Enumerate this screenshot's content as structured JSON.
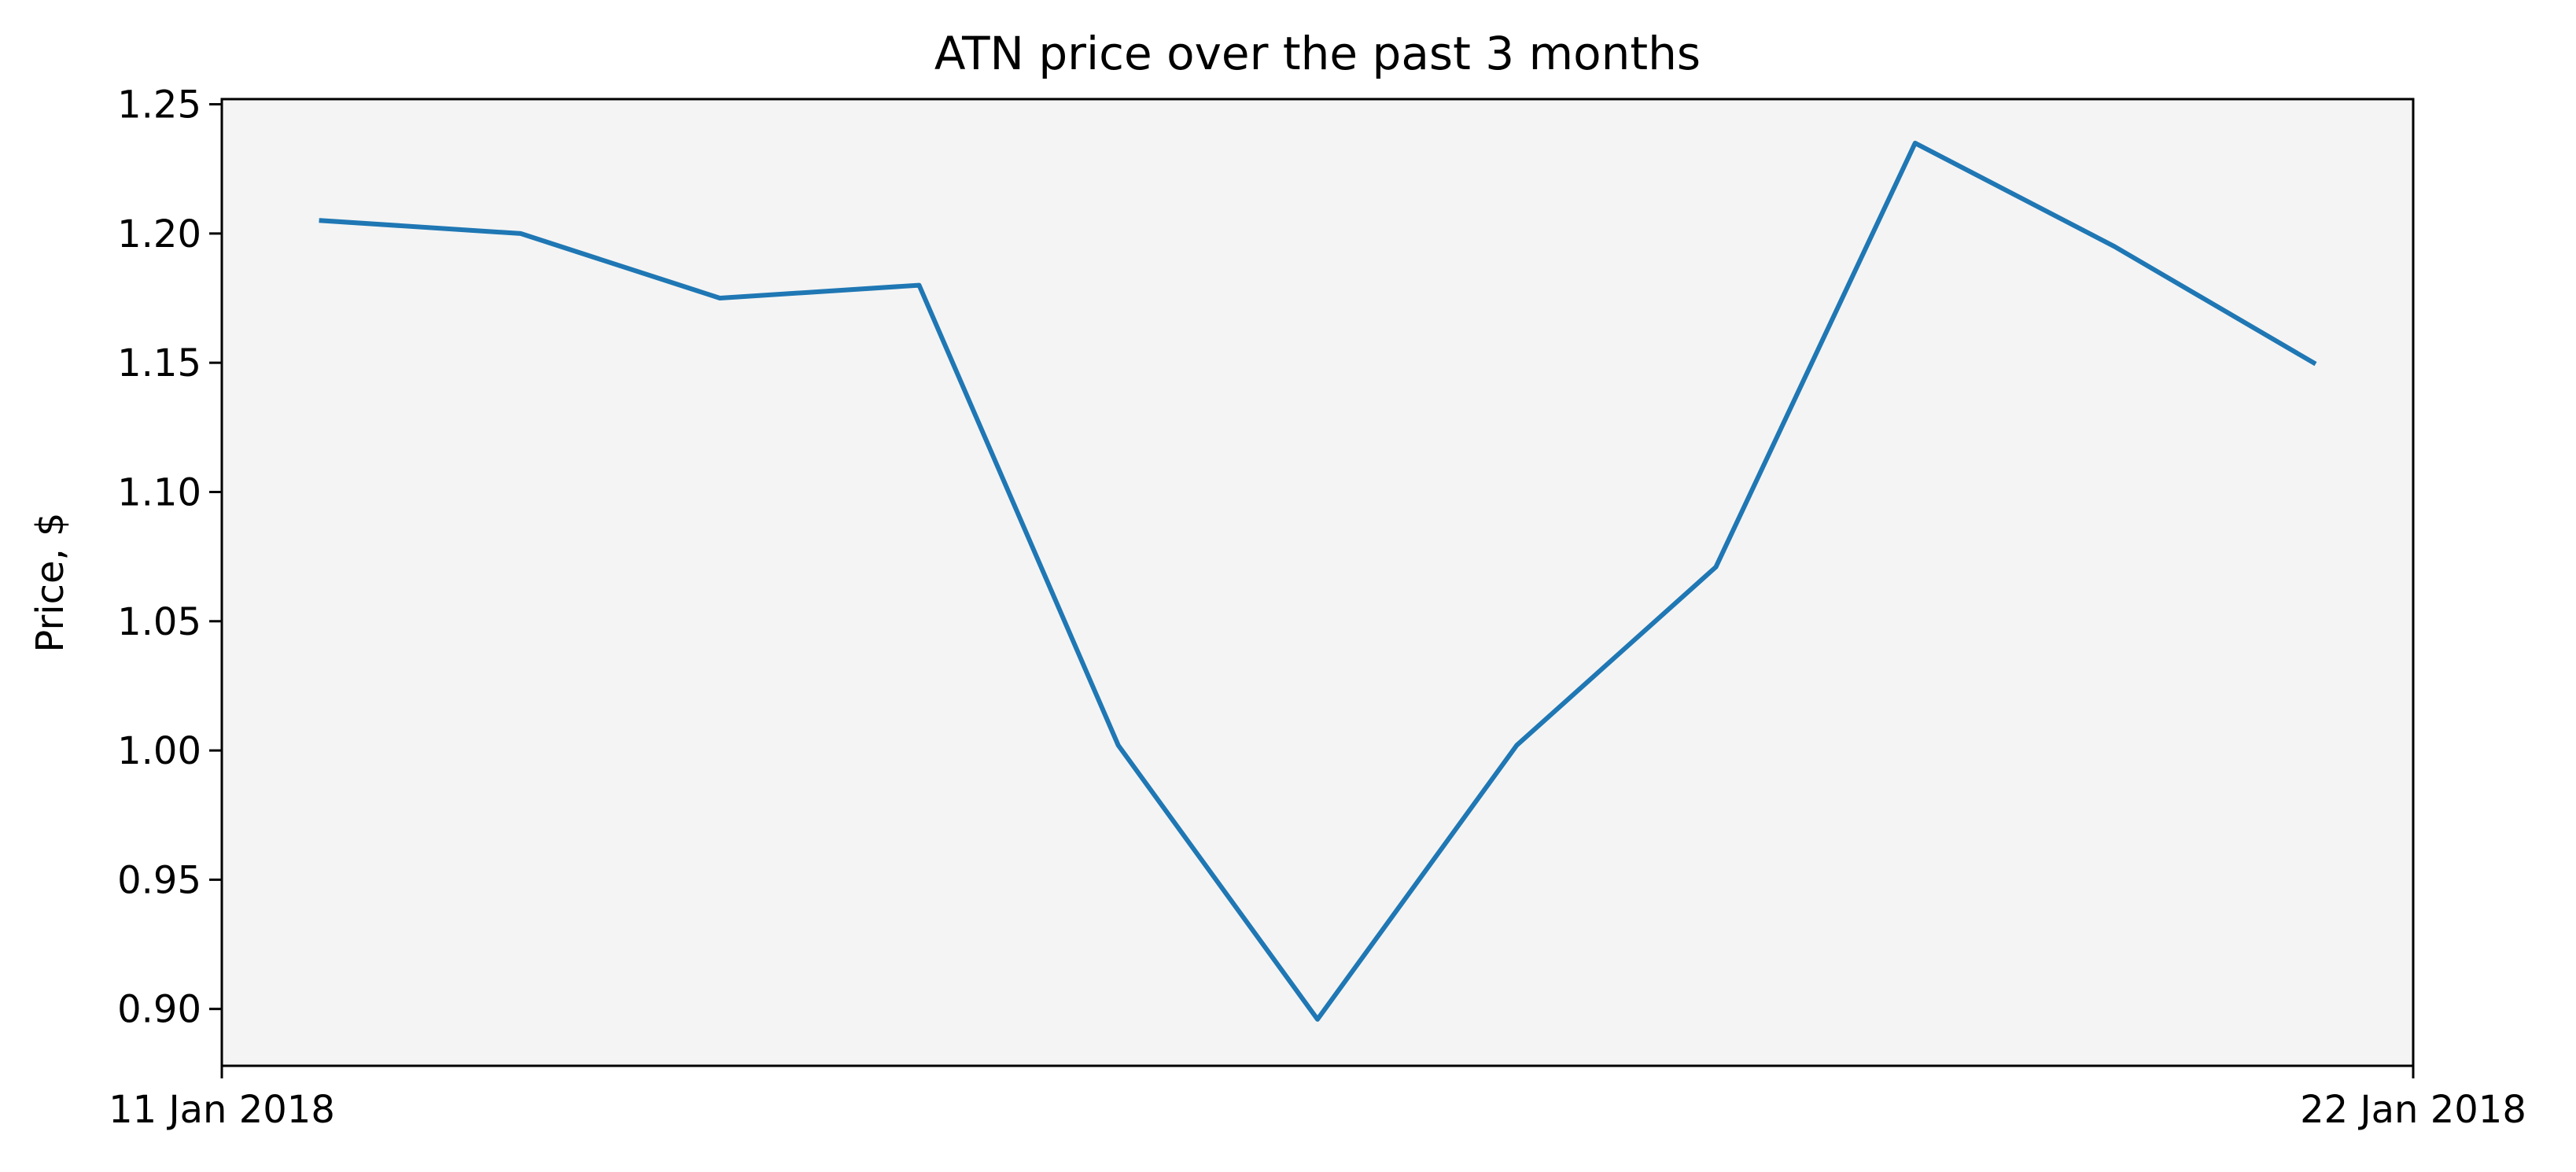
{
  "chart_data": {
    "type": "line",
    "title": "ATN price over the past 3 months",
    "xlabel": "",
    "ylabel": "Price, $",
    "x_tick_labels": [
      "11 Jan 2018",
      "22 Jan 2018"
    ],
    "y_ticks": [
      0.9,
      0.95,
      1.0,
      1.05,
      1.1,
      1.15,
      1.2,
      1.25
    ],
    "y_tick_labels": [
      "0.90",
      "0.95",
      "1.00",
      "1.05",
      "1.10",
      "1.15",
      "1.20",
      "1.25"
    ],
    "xlim": [
      "2018-01-11",
      "2018-01-22"
    ],
    "ylim": [
      0.878,
      1.252
    ],
    "grid": false,
    "background_color": "#f4f4f4",
    "line_color": "#1f77b4",
    "series": [
      {
        "x": [
          "2018-01-11T12:00",
          "2018-01-12T12:00",
          "2018-01-13T12:00",
          "2018-01-14T12:00",
          "2018-01-15T12:00",
          "2018-01-16T12:00",
          "2018-01-17T12:00",
          "2018-01-18T12:00",
          "2018-01-19T12:00",
          "2018-01-20T12:00",
          "2018-01-21T12:00"
        ],
        "values": [
          1.205,
          1.2,
          1.175,
          1.18,
          1.002,
          0.896,
          1.002,
          1.071,
          1.235,
          1.195,
          1.15
        ]
      }
    ]
  }
}
